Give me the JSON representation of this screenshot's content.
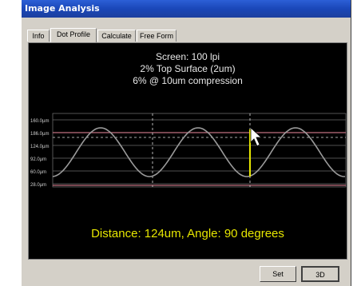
{
  "window": {
    "title": "Image Analysis"
  },
  "tabs": [
    {
      "label": "Info",
      "active": false
    },
    {
      "label": "Dot Profile",
      "active": true
    },
    {
      "label": "Calculate",
      "active": false
    },
    {
      "label": "Free Form",
      "active": false
    }
  ],
  "plot": {
    "header_lines": [
      "Screen: 100 lpi",
      "2% Top Surface (2um)",
      "6% @ 10um compression"
    ],
    "readout": "Distance: 124um, Angle: 90 degrees"
  },
  "chart_data": {
    "type": "line",
    "y_tick_labels": [
      "160.0µm",
      "186.0µm",
      "124.0µm",
      "92.0µm",
      "60.0µm",
      "28.0µm"
    ],
    "colors": {
      "curve": "#9a9a9a",
      "grid": "#6a6a6a",
      "surface_line": "#c07080",
      "measure_line": "#e6e600",
      "dashed_marker": "#e0e0e0"
    }
  },
  "buttons": {
    "set_label": "Set",
    "three_d_label": "3D"
  }
}
